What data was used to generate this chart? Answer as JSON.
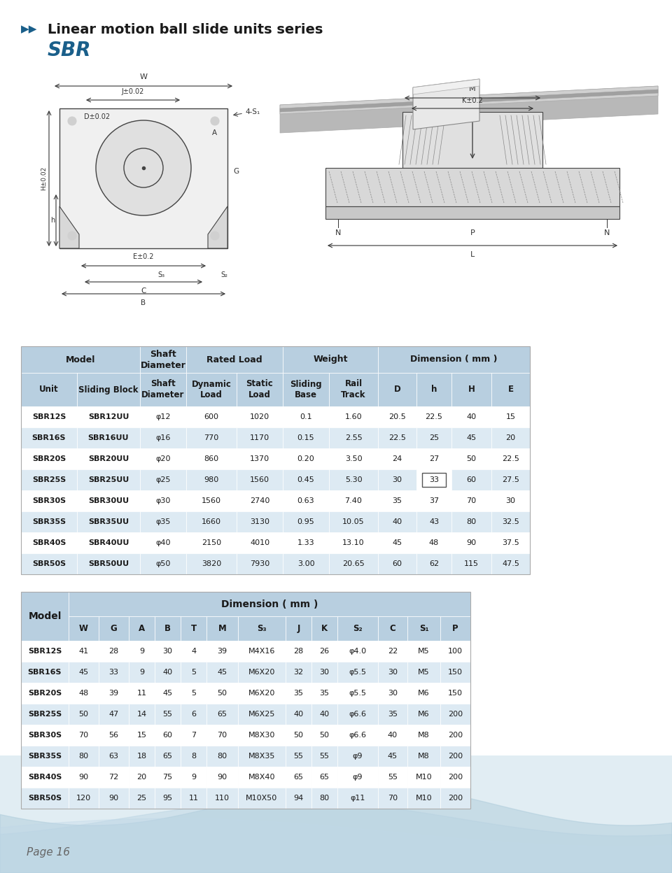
{
  "title": "Linear motion ball slide units series",
  "subtitle": "SBR",
  "title_arrow_color": "#1a5f8a",
  "subtitle_color": "#1a5f8a",
  "page_label": "Page 16",
  "bg_color": "#FFFFFF",
  "table_header_bg": "#b8cfe0",
  "table_row_bg_alt": "#ddeaf3",
  "table_row_bg": "#FFFFFF",
  "table1_data": [
    [
      "SBR12S",
      "SBR12UU",
      "φ12",
      "600",
      "1020",
      "0.1",
      "1.60",
      "20.5",
      "22.5",
      "40",
      "15"
    ],
    [
      "SBR16S",
      "SBR16UU",
      "φ16",
      "770",
      "1170",
      "0.15",
      "2.55",
      "22.5",
      "25",
      "45",
      "20"
    ],
    [
      "SBR20S",
      "SBR20UU",
      "φ20",
      "860",
      "1370",
      "0.20",
      "3.50",
      "24",
      "27",
      "50",
      "22.5"
    ],
    [
      "SBR25S",
      "SBR25UU",
      "φ25",
      "980",
      "1560",
      "0.45",
      "5.30",
      "30",
      "33",
      "60",
      "27.5"
    ],
    [
      "SBR30S",
      "SBR30UU",
      "φ30",
      "1560",
      "2740",
      "0.63",
      "7.40",
      "35",
      "37",
      "70",
      "30"
    ],
    [
      "SBR35S",
      "SBR35UU",
      "φ35",
      "1660",
      "3130",
      "0.95",
      "10.05",
      "40",
      "43",
      "80",
      "32.5"
    ],
    [
      "SBR40S",
      "SBR40UU",
      "φ40",
      "2150",
      "4010",
      "1.33",
      "13.10",
      "45",
      "48",
      "90",
      "37.5"
    ],
    [
      "SBR50S",
      "SBR50UU",
      "φ50",
      "3820",
      "7930",
      "3.00",
      "20.65",
      "60",
      "62",
      "115",
      "47.5"
    ]
  ],
  "table1_special_cell": [
    3,
    8
  ],
  "table2_headers": [
    "Model",
    "W",
    "G",
    "A",
    "B",
    "T",
    "M",
    "S₃",
    "J",
    "K",
    "S₂",
    "C",
    "S₁",
    "P"
  ],
  "table2_data": [
    [
      "SBR12S",
      "41",
      "28",
      "9",
      "30",
      "4",
      "39",
      "M4X16",
      "28",
      "26",
      "φ4.0",
      "22",
      "M5",
      "100"
    ],
    [
      "SBR16S",
      "45",
      "33",
      "9",
      "40",
      "5",
      "45",
      "M6X20",
      "32",
      "30",
      "φ5.5",
      "30",
      "M5",
      "150"
    ],
    [
      "SBR20S",
      "48",
      "39",
      "11",
      "45",
      "5",
      "50",
      "M6X20",
      "35",
      "35",
      "φ5.5",
      "30",
      "M6",
      "150"
    ],
    [
      "SBR25S",
      "50",
      "47",
      "14",
      "55",
      "6",
      "65",
      "M6X25",
      "40",
      "40",
      "φ6.6",
      "35",
      "M6",
      "200"
    ],
    [
      "SBR30S",
      "70",
      "56",
      "15",
      "60",
      "7",
      "70",
      "M8X30",
      "50",
      "50",
      "φ6.6",
      "40",
      "M8",
      "200"
    ],
    [
      "SBR35S",
      "80",
      "63",
      "18",
      "65",
      "8",
      "80",
      "M8X35",
      "55",
      "55",
      "φ9",
      "45",
      "M8",
      "200"
    ],
    [
      "SBR40S",
      "90",
      "72",
      "20",
      "75",
      "9",
      "90",
      "M8X40",
      "65",
      "65",
      "φ9",
      "55",
      "M10",
      "200"
    ],
    [
      "SBR50S",
      "120",
      "90",
      "25",
      "95",
      "11",
      "110",
      "M10X50",
      "94",
      "80",
      "φ11",
      "70",
      "M10",
      "200"
    ]
  ]
}
